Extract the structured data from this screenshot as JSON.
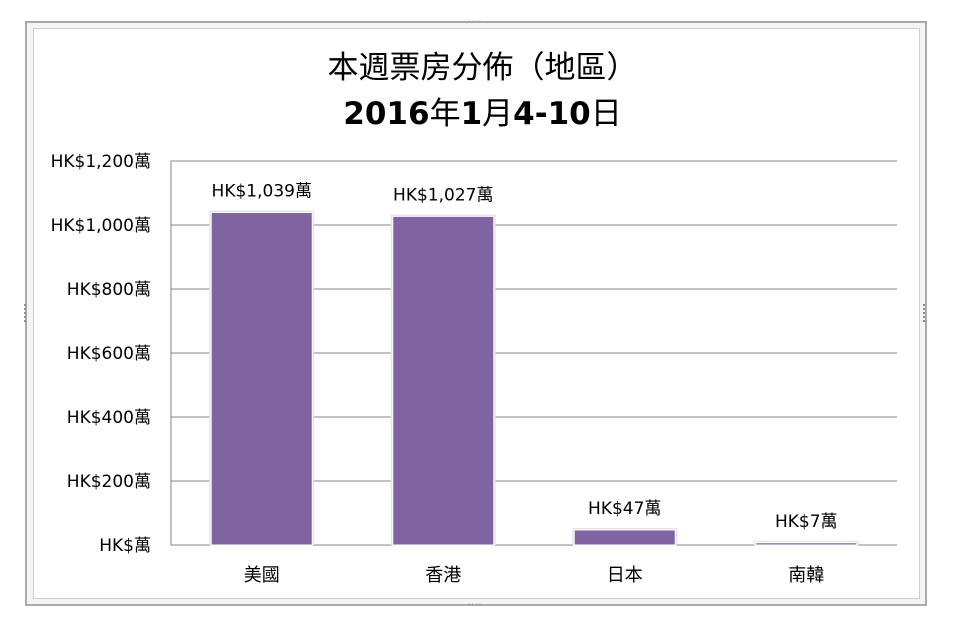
{
  "chart_data": {
    "type": "bar",
    "title": "本週票房分佈（地區）",
    "subtitle_parts": [
      {
        "text": "2016",
        "bold": true
      },
      {
        "text": "年",
        "bold": false
      },
      {
        "text": "1",
        "bold": true
      },
      {
        "text": "月",
        "bold": false
      },
      {
        "text": "4-10",
        "bold": true
      },
      {
        "text": "日",
        "bold": false
      }
    ],
    "categories": [
      "美國",
      "香港",
      "日本",
      "南韓"
    ],
    "values": [
      1039,
      1027,
      47,
      7
    ],
    "data_labels": [
      "HK$1,039萬",
      "HK$1,027萬",
      "HK$47萬",
      "HK$7萬"
    ],
    "y_ticks": [
      0,
      200,
      400,
      600,
      800,
      1000,
      1200
    ],
    "y_tick_labels": [
      "HK$萬",
      "HK$200萬",
      "HK$400萬",
      "HK$600萬",
      "HK$800萬",
      "HK$1,000萬",
      "HK$1,200萬"
    ],
    "ylim": [
      0,
      1200
    ],
    "grid": true,
    "legend": "none",
    "bar_color": "#8064a2"
  },
  "chart_frame": {
    "handle": "····"
  }
}
